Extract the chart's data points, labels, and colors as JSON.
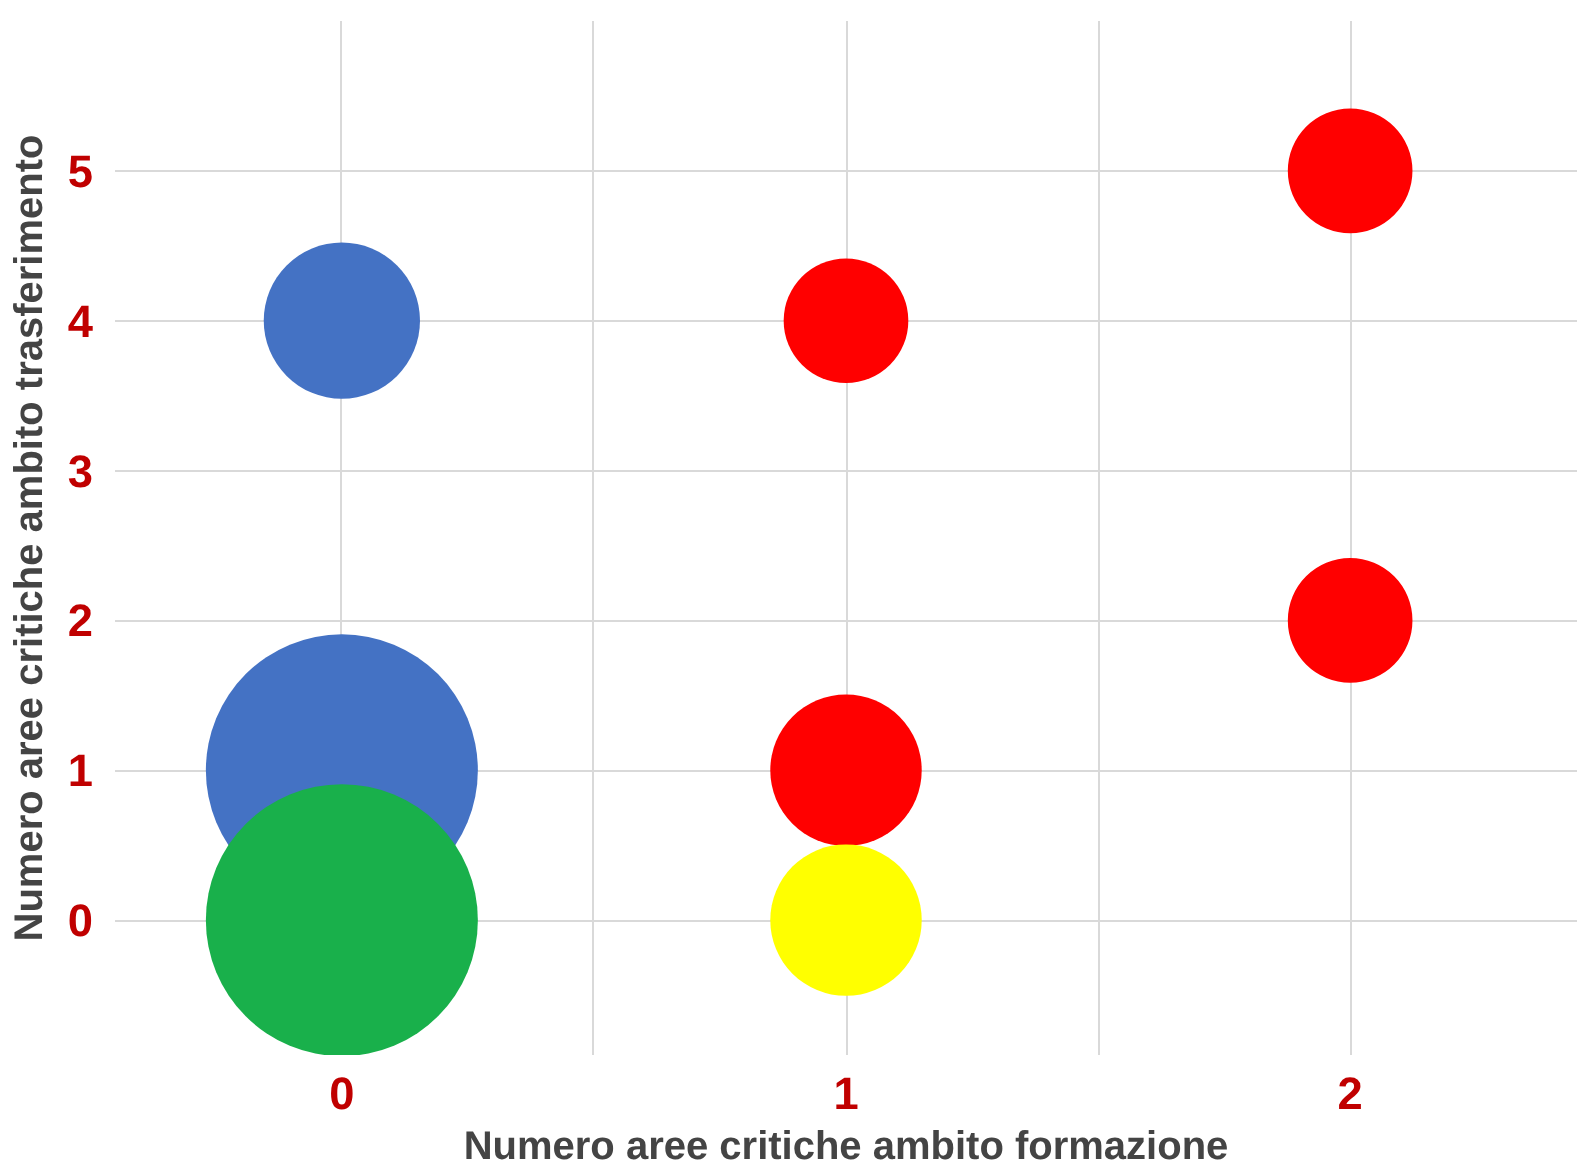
{
  "chart_data": {
    "type": "bubble",
    "xlabel": "Numero aree critiche ambito formazione",
    "ylabel": "Numero aree critiche ambito trasferimento",
    "x": [
      0,
      0,
      0,
      1,
      1,
      1,
      2,
      2
    ],
    "values": [
      4,
      1,
      0,
      4,
      1,
      0,
      5,
      2
    ],
    "sizes": [
      0.33,
      1,
      1,
      0.21,
      0.31,
      0.31,
      0.21,
      0.21
    ],
    "colors": [
      "#4472c4",
      "#4472c4",
      "#19b04b",
      "#ff0000",
      "#ff0000",
      "#ffff00",
      "#ff0000",
      "#ff0000"
    ],
    "xlim": [
      -0.45,
      2.45
    ],
    "ylim": [
      -0.9,
      6
    ],
    "xticks": [
      0,
      {
        "value": 0.5,
        "label": null
      },
      1,
      {
        "value": 1.5,
        "label": null
      },
      2
    ],
    "yticks": [
      0,
      1,
      2,
      3,
      4,
      5
    ],
    "grid": true
  }
}
